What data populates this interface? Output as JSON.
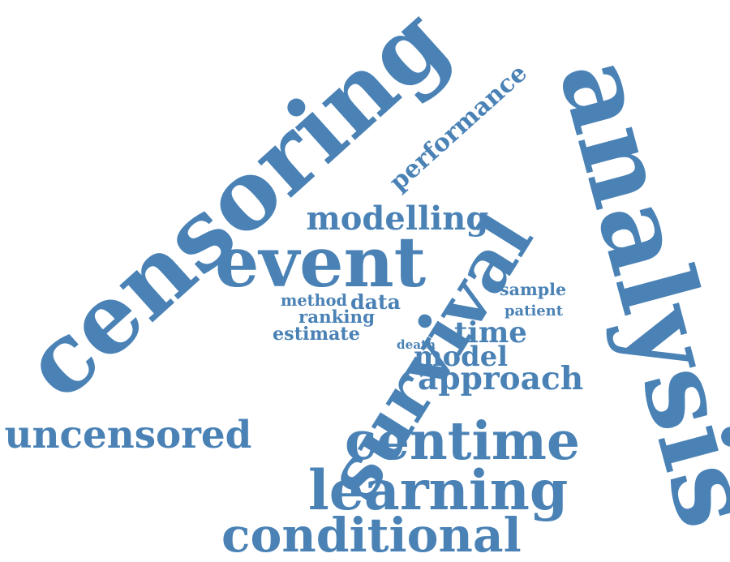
{
  "accent_color": "#4a82b6",
  "words": [
    {
      "id": "censoring",
      "text": "censoring"
    },
    {
      "id": "survival",
      "text": "survival"
    },
    {
      "id": "analysis",
      "text": "analysis"
    },
    {
      "id": "event",
      "text": "event"
    },
    {
      "id": "centime",
      "text": "centime"
    },
    {
      "id": "learning",
      "text": "learning"
    },
    {
      "id": "conditional",
      "text": "conditional"
    },
    {
      "id": "uncensored",
      "text": "uncensored"
    },
    {
      "id": "approach",
      "text": "approach"
    },
    {
      "id": "modelling",
      "text": "modelling"
    },
    {
      "id": "performance",
      "text": "performance"
    },
    {
      "id": "model",
      "text": "model"
    },
    {
      "id": "time",
      "text": "time"
    },
    {
      "id": "data",
      "text": "data"
    },
    {
      "id": "method",
      "text": "method"
    },
    {
      "id": "ranking",
      "text": "ranking"
    },
    {
      "id": "estimate",
      "text": "estimate"
    },
    {
      "id": "sample",
      "text": "sample"
    },
    {
      "id": "patient",
      "text": "patient"
    },
    {
      "id": "death",
      "text": "death"
    }
  ]
}
